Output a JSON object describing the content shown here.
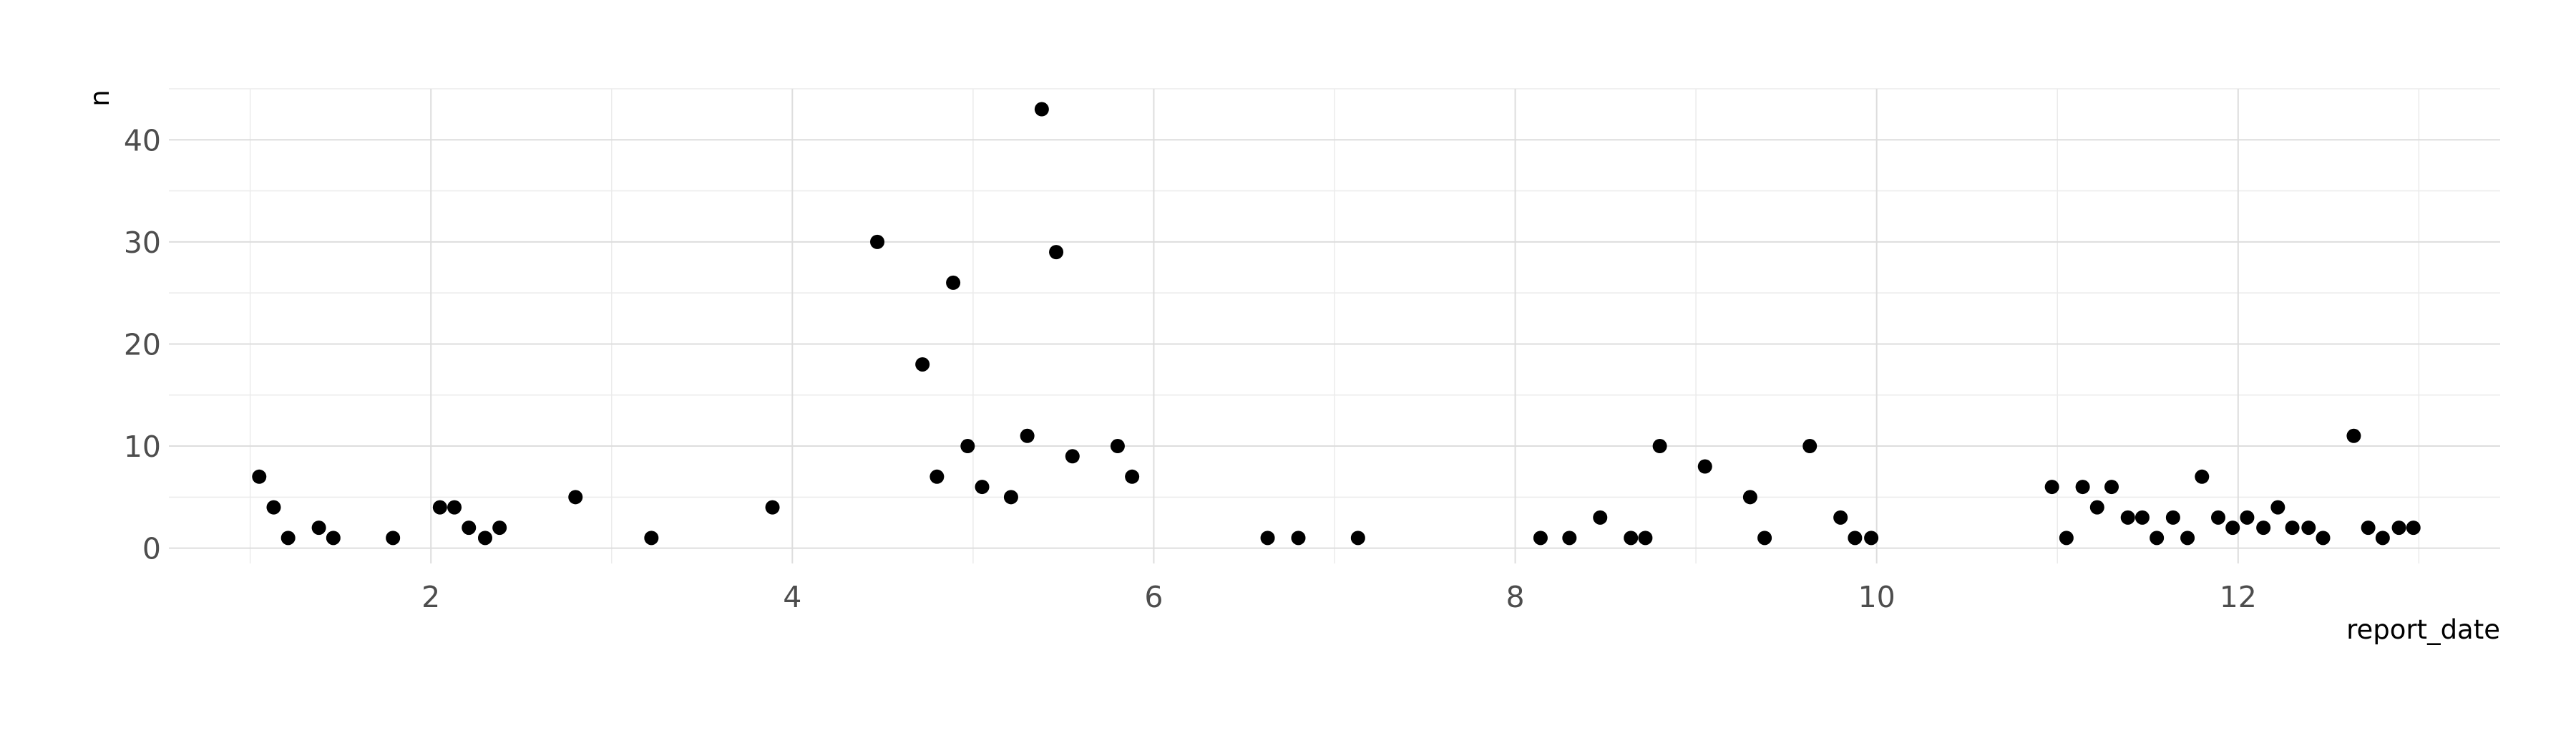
{
  "chart_data": {
    "type": "scatter",
    "title": "",
    "xlabel": "report_date",
    "ylabel": "n",
    "xlim": [
      0.55,
      13.45
    ],
    "ylim": [
      -1.5,
      45
    ],
    "x_ticks": [
      2,
      4,
      6,
      8,
      10,
      12
    ],
    "x_tick_labels": [
      "2",
      "4",
      "6",
      "8",
      "10",
      "12"
    ],
    "y_ticks": [
      0,
      10,
      20,
      30,
      40
    ],
    "y_tick_labels": [
      "0",
      "10",
      "20",
      "30",
      "40"
    ],
    "grid": true,
    "legend": "none",
    "point_color": "#000000",
    "points": [
      {
        "x": 1.05,
        "y": 7
      },
      {
        "x": 1.13,
        "y": 4
      },
      {
        "x": 1.21,
        "y": 1
      },
      {
        "x": 1.38,
        "y": 2
      },
      {
        "x": 1.46,
        "y": 1
      },
      {
        "x": 1.79,
        "y": 1
      },
      {
        "x": 2.05,
        "y": 4
      },
      {
        "x": 2.13,
        "y": 4
      },
      {
        "x": 2.21,
        "y": 2
      },
      {
        "x": 2.3,
        "y": 1
      },
      {
        "x": 2.38,
        "y": 2
      },
      {
        "x": 2.8,
        "y": 5
      },
      {
        "x": 3.22,
        "y": 1
      },
      {
        "x": 3.89,
        "y": 4
      },
      {
        "x": 4.47,
        "y": 30
      },
      {
        "x": 4.72,
        "y": 18
      },
      {
        "x": 4.8,
        "y": 7
      },
      {
        "x": 4.89,
        "y": 26
      },
      {
        "x": 4.97,
        "y": 10
      },
      {
        "x": 5.05,
        "y": 6
      },
      {
        "x": 5.21,
        "y": 5
      },
      {
        "x": 5.3,
        "y": 11
      },
      {
        "x": 5.38,
        "y": 43
      },
      {
        "x": 5.46,
        "y": 29
      },
      {
        "x": 5.55,
        "y": 9
      },
      {
        "x": 5.8,
        "y": 10
      },
      {
        "x": 5.88,
        "y": 7
      },
      {
        "x": 6.63,
        "y": 1
      },
      {
        "x": 6.8,
        "y": 1
      },
      {
        "x": 7.13,
        "y": 1
      },
      {
        "x": 8.14,
        "y": 1
      },
      {
        "x": 8.3,
        "y": 1
      },
      {
        "x": 8.47,
        "y": 3
      },
      {
        "x": 8.64,
        "y": 1
      },
      {
        "x": 8.72,
        "y": 1
      },
      {
        "x": 8.8,
        "y": 10
      },
      {
        "x": 9.05,
        "y": 8
      },
      {
        "x": 9.3,
        "y": 5
      },
      {
        "x": 9.38,
        "y": 1
      },
      {
        "x": 9.63,
        "y": 10
      },
      {
        "x": 9.8,
        "y": 3
      },
      {
        "x": 9.88,
        "y": 1
      },
      {
        "x": 9.97,
        "y": 1
      },
      {
        "x": 10.97,
        "y": 6
      },
      {
        "x": 11.05,
        "y": 1
      },
      {
        "x": 11.14,
        "y": 6
      },
      {
        "x": 11.22,
        "y": 4
      },
      {
        "x": 11.3,
        "y": 6
      },
      {
        "x": 11.39,
        "y": 3
      },
      {
        "x": 11.47,
        "y": 3
      },
      {
        "x": 11.55,
        "y": 1
      },
      {
        "x": 11.64,
        "y": 3
      },
      {
        "x": 11.72,
        "y": 1
      },
      {
        "x": 11.8,
        "y": 7
      },
      {
        "x": 11.89,
        "y": 3
      },
      {
        "x": 11.97,
        "y": 2
      },
      {
        "x": 12.05,
        "y": 3
      },
      {
        "x": 12.14,
        "y": 2
      },
      {
        "x": 12.22,
        "y": 4
      },
      {
        "x": 12.3,
        "y": 2
      },
      {
        "x": 12.39,
        "y": 2
      },
      {
        "x": 12.47,
        "y": 1
      },
      {
        "x": 12.64,
        "y": 11
      },
      {
        "x": 12.72,
        "y": 2
      },
      {
        "x": 12.8,
        "y": 1
      },
      {
        "x": 12.89,
        "y": 2
      },
      {
        "x": 12.97,
        "y": 2
      }
    ]
  }
}
